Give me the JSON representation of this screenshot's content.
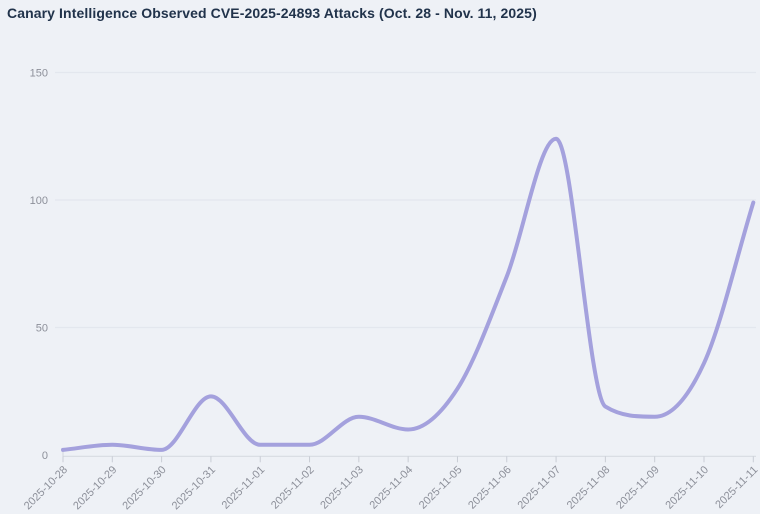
{
  "chart_data": {
    "type": "line",
    "title": "Canary Intelligence Observed CVE-2025-24893 Attacks (Oct. 28 - Nov. 11, 2025)",
    "x": [
      "2025-10-28",
      "2025-10-29",
      "2025-10-30",
      "2025-10-31",
      "2025-11-01",
      "2025-11-02",
      "2025-11-03",
      "2025-11-04",
      "2025-11-05",
      "2025-11-06",
      "2025-11-07",
      "2025-11-08",
      "2025-11-09",
      "2025-11-10",
      "2025-11-11"
    ],
    "values": [
      2,
      4,
      2,
      23,
      4,
      4,
      15,
      10,
      26,
      70,
      124,
      19,
      15,
      36,
      99
    ],
    "xlabel": "",
    "ylabel": "",
    "ylim": [
      0,
      150
    ],
    "yticks": [
      0,
      50,
      100,
      150
    ],
    "grid": true,
    "legend": false,
    "curve": "monotone",
    "colors": {
      "line": "#a4a1dd",
      "background": "#eef1f6",
      "title_text": "#21334b",
      "tick_text": "#8d909a",
      "gridline": "#e3e7ee",
      "axis_line": "#d7dbe2",
      "tick_mark": "#c9cdd5"
    }
  }
}
